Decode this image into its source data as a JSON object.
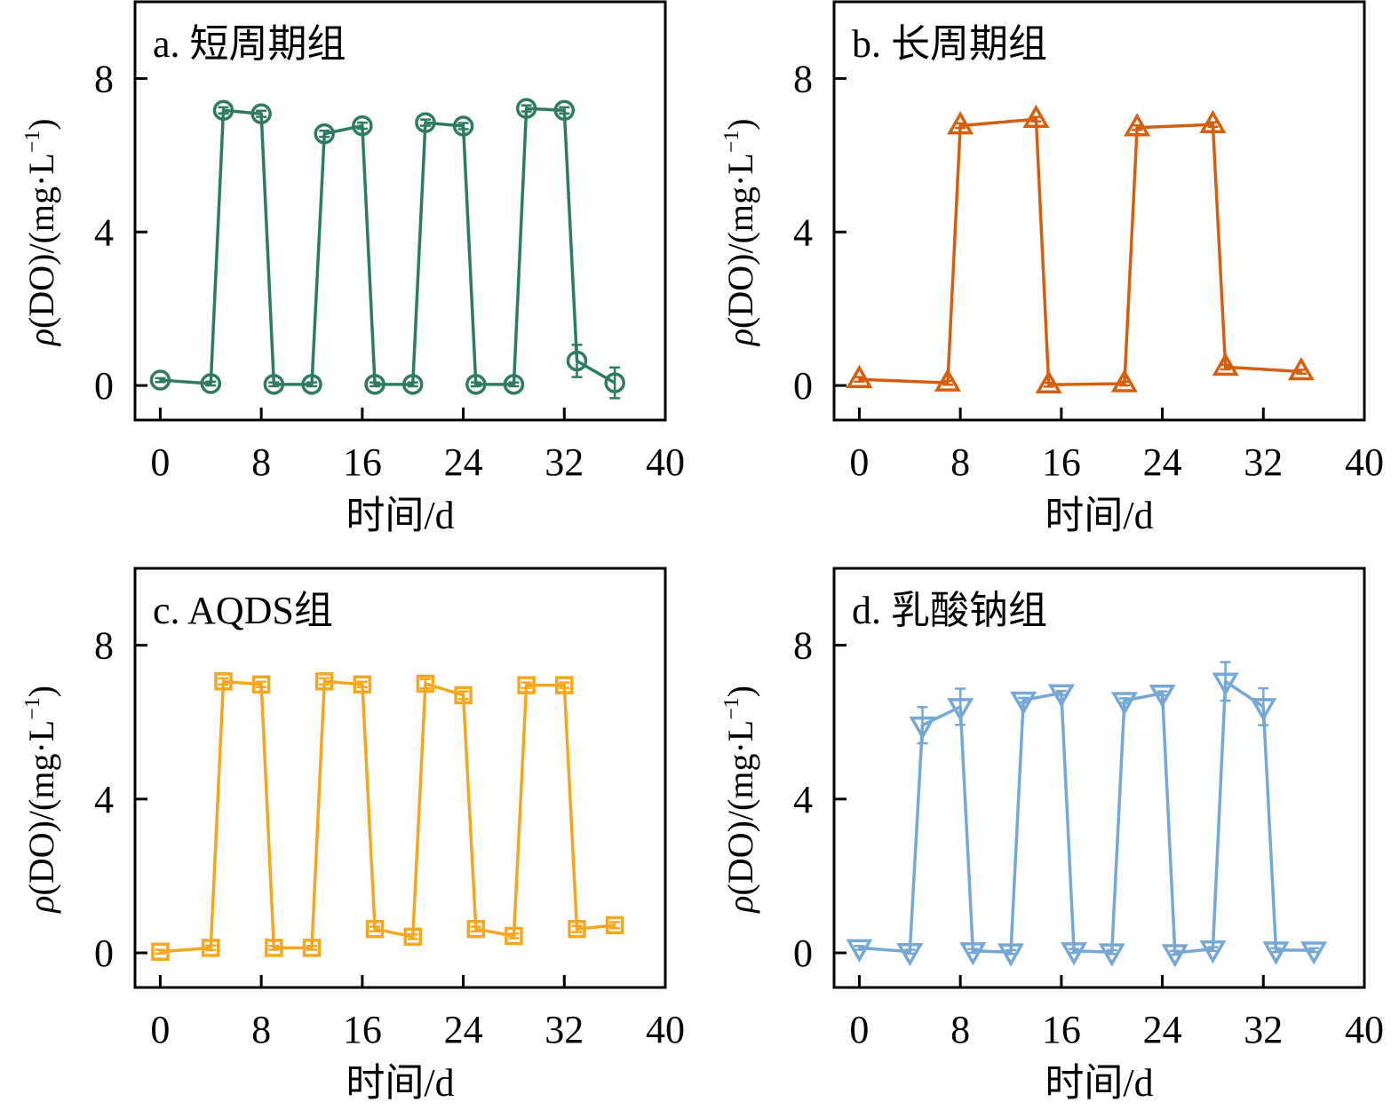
{
  "figure": {
    "ylabel_rho": "ρ",
    "ylabel_rest": "(DO)/(mg·L",
    "ylabel_sup": "−1",
    "ylabel_close": ")",
    "xlabel": "时间/d"
  },
  "chart_data": [
    {
      "type": "line",
      "panel": "a",
      "title": "a. 短周期组",
      "xlabel": "时间/d",
      "ylabel": "ρ(DO)/(mg·L⁻¹)",
      "xlim": [
        -2,
        40
      ],
      "ylim": [
        -0.9,
        10
      ],
      "xticks": [
        0,
        8,
        16,
        24,
        32,
        40
      ],
      "yticks": [
        0,
        4,
        8
      ],
      "grid": false,
      "marker": "circle",
      "color": "#2f7a62",
      "series": [
        {
          "name": "短周期组",
          "x": [
            0,
            4,
            5,
            8,
            9,
            12,
            13,
            16,
            17,
            20,
            21,
            24,
            25,
            28,
            29,
            32,
            33,
            36
          ],
          "y": [
            0.14,
            0.05,
            7.17,
            7.08,
            0.03,
            0.03,
            6.56,
            6.77,
            0.03,
            0.03,
            6.85,
            6.76,
            0.03,
            0.03,
            7.22,
            7.17,
            0.64,
            0.07
          ],
          "err": [
            0.05,
            0.05,
            0.08,
            0.08,
            0.05,
            0.05,
            0.08,
            0.08,
            0.05,
            0.05,
            0.08,
            0.08,
            0.05,
            0.05,
            0.08,
            0.08,
            0.42,
            0.4
          ]
        }
      ]
    },
    {
      "type": "line",
      "panel": "b",
      "title": "b. 长周期组",
      "xlabel": "时间/d",
      "ylabel": "ρ(DO)/(mg·L⁻¹)",
      "xlim": [
        -2,
        40
      ],
      "ylim": [
        -0.9,
        10
      ],
      "xticks": [
        0,
        8,
        16,
        24,
        32,
        40
      ],
      "yticks": [
        0,
        4,
        8
      ],
      "grid": false,
      "marker": "triangle-up",
      "color": "#d4600f",
      "series": [
        {
          "name": "长周期组",
          "x": [
            0,
            7,
            8,
            14,
            15,
            21,
            22,
            28,
            29,
            35
          ],
          "y": [
            0.16,
            0.07,
            6.77,
            6.94,
            0.02,
            0.05,
            6.72,
            6.8,
            0.48,
            0.36
          ],
          "err": [
            0.06,
            0.05,
            0.06,
            0.06,
            0.05,
            0.05,
            0.06,
            0.06,
            0.06,
            0.05
          ]
        }
      ]
    },
    {
      "type": "line",
      "panel": "c",
      "title": "c. AQDS组",
      "xlabel": "时间/d",
      "ylabel": "ρ(DO)/(mg·L⁻¹)",
      "xlim": [
        -2,
        40
      ],
      "ylim": [
        -0.9,
        10
      ],
      "xticks": [
        0,
        8,
        16,
        24,
        32,
        40
      ],
      "yticks": [
        0,
        4,
        8
      ],
      "grid": false,
      "marker": "square",
      "color": "#f5a81f",
      "series": [
        {
          "name": "AQDS组",
          "x": [
            0,
            4,
            5,
            8,
            9,
            12,
            13,
            16,
            17,
            20,
            21,
            24,
            25,
            28,
            29,
            32,
            33,
            36
          ],
          "y": [
            0.03,
            0.13,
            7.06,
            6.98,
            0.13,
            0.13,
            7.06,
            6.98,
            0.62,
            0.42,
            7.0,
            6.7,
            0.62,
            0.44,
            6.96,
            6.96,
            0.62,
            0.72
          ],
          "err": [
            0.05,
            0.06,
            0.08,
            0.07,
            0.05,
            0.05,
            0.08,
            0.07,
            0.06,
            0.06,
            0.12,
            0.1,
            0.06,
            0.06,
            0.07,
            0.07,
            0.08,
            0.08
          ]
        }
      ]
    },
    {
      "type": "line",
      "panel": "d",
      "title": "d. 乳酸钠组",
      "xlabel": "时间/d",
      "ylabel": "ρ(DO)/(mg·L⁻¹)",
      "xlim": [
        -2,
        40
      ],
      "ylim": [
        -0.9,
        10
      ],
      "xticks": [
        0,
        8,
        16,
        24,
        32,
        40
      ],
      "yticks": [
        0,
        4,
        8
      ],
      "grid": false,
      "marker": "triangle-down",
      "color": "#75a8d4",
      "series": [
        {
          "name": "乳酸钠组",
          "x": [
            0,
            4,
            5,
            8,
            9,
            12,
            13,
            16,
            17,
            20,
            21,
            24,
            25,
            28,
            29,
            32,
            33,
            36
          ],
          "y": [
            0.13,
            0.03,
            5.92,
            6.4,
            0.05,
            0.02,
            6.57,
            6.76,
            0.05,
            0.02,
            6.56,
            6.75,
            0.0,
            0.1,
            7.06,
            6.4,
            0.07,
            0.07
          ],
          "err": [
            0.05,
            0.05,
            0.47,
            0.47,
            0.05,
            0.05,
            0.06,
            0.05,
            0.05,
            0.05,
            0.06,
            0.05,
            0.05,
            0.05,
            0.5,
            0.48,
            0.05,
            0.05
          ]
        }
      ]
    }
  ]
}
